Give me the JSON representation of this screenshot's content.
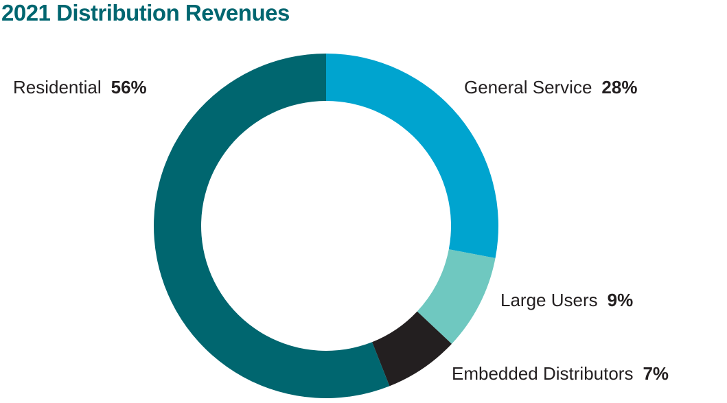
{
  "chart_data": {
    "type": "pie",
    "title": "2021 Distribution Revenues",
    "categories": [
      "General Service",
      "Large Users",
      "Embedded Distributors",
      "Residential"
    ],
    "values": [
      28,
      9,
      7,
      56
    ],
    "value_labels": [
      "28%",
      "9%",
      "7%",
      "56%"
    ],
    "colors": [
      "#00a4cf",
      "#6fc8c0",
      "#231f20",
      "#00666f"
    ],
    "unit": "%",
    "hole": true
  }
}
